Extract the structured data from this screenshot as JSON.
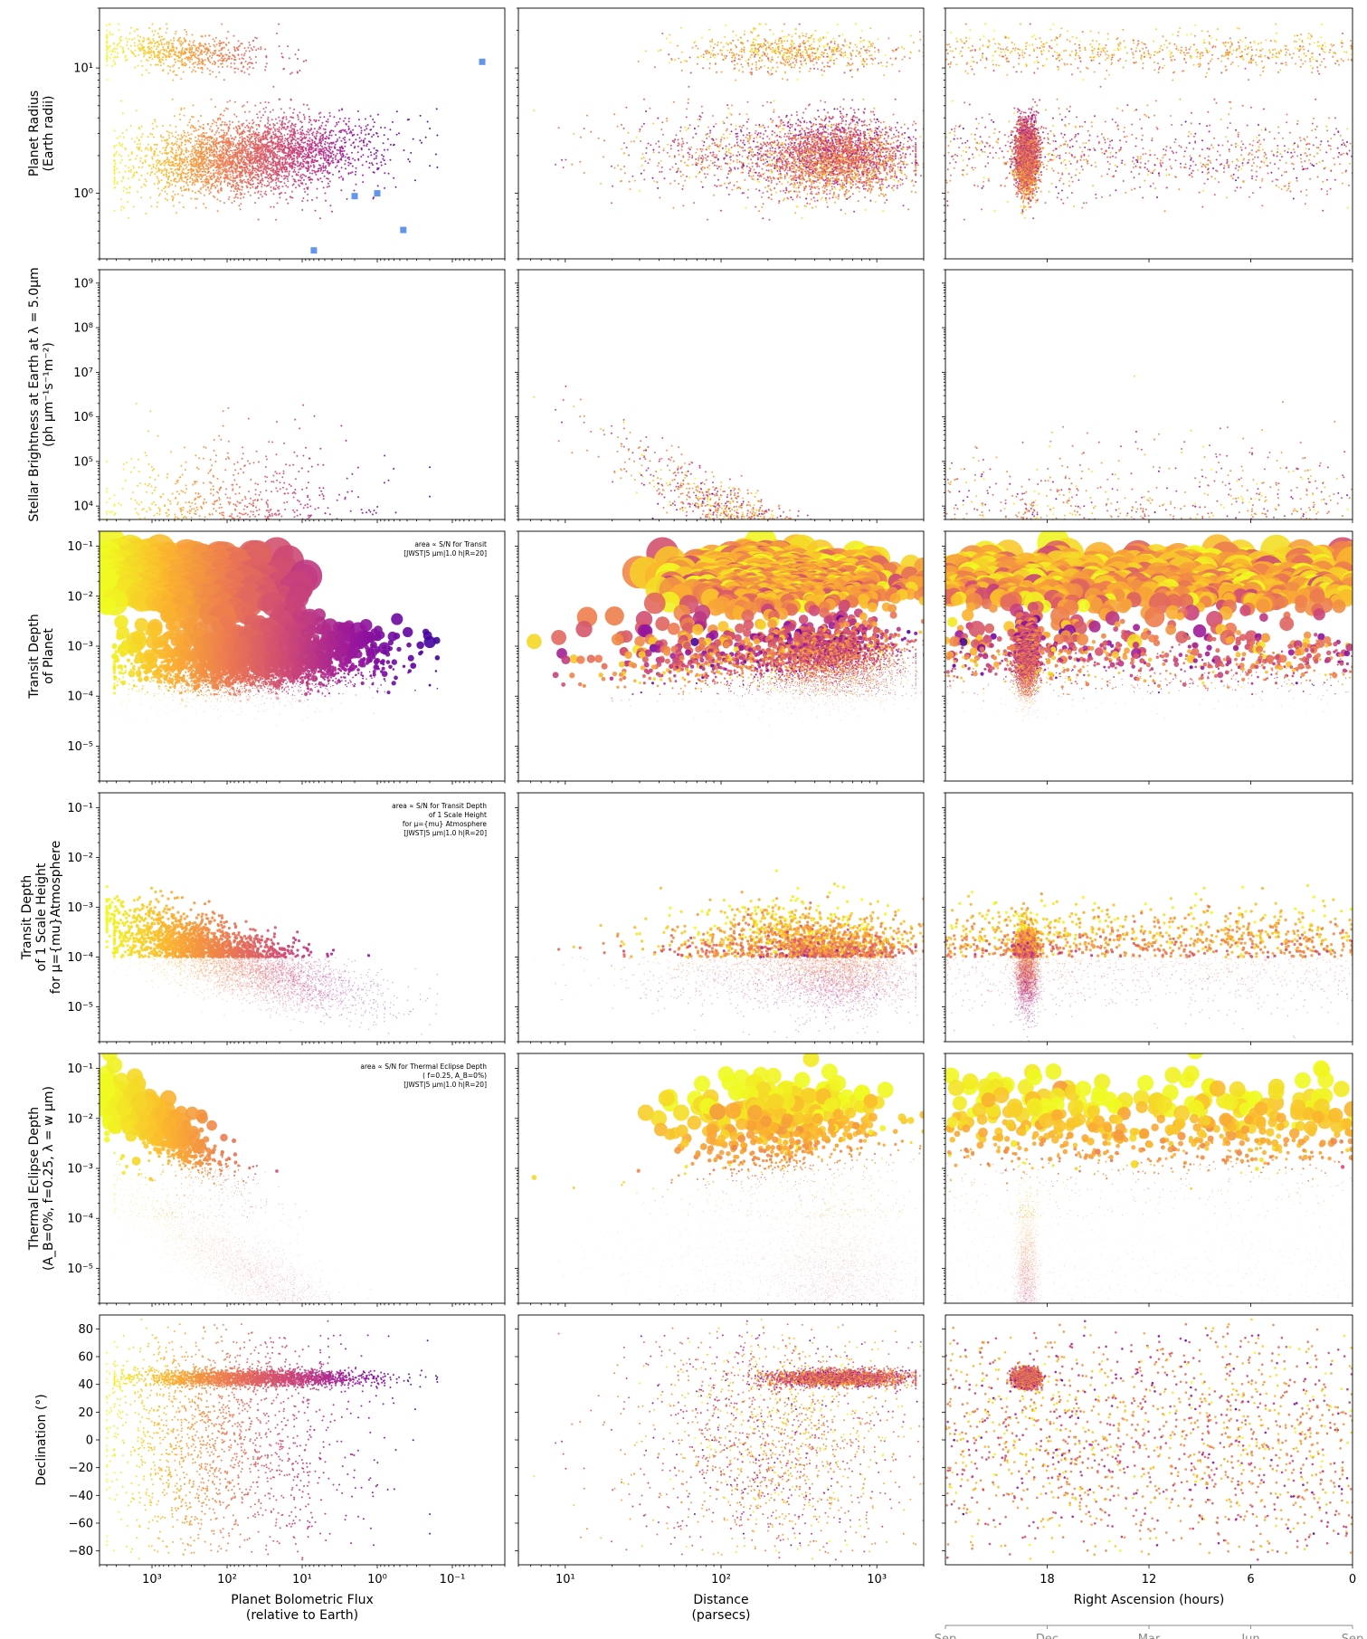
{
  "chart_data": {
    "type": "scatter",
    "grid": false,
    "colormap": [
      "#0d0887",
      "#5b02a3",
      "#9a179b",
      "#cb4678",
      "#eb7852",
      "#fbb32f",
      "#f0f921"
    ],
    "columns": [
      {
        "key": "flux",
        "xlabel": [
          "Planet Bolometric Flux",
          "(relative to Earth)"
        ],
        "xscale": "log",
        "xlim": [
          5000,
          0.02
        ],
        "xticks": [
          {
            "v": 1000,
            "label": "10³"
          },
          {
            "v": 100,
            "label": "10²"
          },
          {
            "v": 10,
            "label": "10¹"
          },
          {
            "v": 1,
            "label": "10⁰"
          },
          {
            "v": 0.1,
            "label": "10⁻¹"
          }
        ]
      },
      {
        "key": "distance",
        "xlabel": [
          "Distance",
          "(parsecs)"
        ],
        "xscale": "log",
        "xlim": [
          5,
          2000
        ],
        "xticks": [
          {
            "v": 10,
            "label": "10¹"
          },
          {
            "v": 100,
            "label": "10²"
          },
          {
            "v": 1000,
            "label": "10³"
          }
        ]
      },
      {
        "key": "ra",
        "xlabel": [
          "Right Ascension (hours)"
        ],
        "xscale": "linear",
        "xlim": [
          24,
          0
        ],
        "xticks": [
          {
            "v": 18,
            "label": "18"
          },
          {
            "v": 12,
            "label": "12"
          },
          {
            "v": 6,
            "label": "6"
          },
          {
            "v": 0,
            "label": "0"
          }
        ],
        "month_axis": [
          "Sep",
          "Dec",
          "Mar",
          "Jun",
          "Sep"
        ]
      }
    ],
    "rows": [
      {
        "key": "radius",
        "ylabel": [
          "Planet Radius",
          "(Earth radii)"
        ],
        "yscale": "log",
        "ylim": [
          0.3,
          30
        ],
        "yticks": [
          {
            "v": 1,
            "label": "10⁰"
          },
          {
            "v": 10,
            "label": "10¹"
          }
        ],
        "note": [],
        "highlight_points": [
          {
            "flux": 0.04,
            "radius": 11.2
          },
          {
            "flux": 2.0,
            "radius": 0.95
          },
          {
            "flux": 1.0,
            "radius": 1.0
          },
          {
            "flux": 0.45,
            "radius": 0.51
          },
          {
            "flux": 7.0,
            "radius": 0.35
          }
        ],
        "highlight_color": "#6495ed"
      },
      {
        "key": "brightness",
        "ylabel": [
          "Stellar Brightness at Earth at λ = 5.0μm",
          "(ph μm⁻¹s⁻¹m⁻²)"
        ],
        "yscale": "log",
        "ylim": [
          5000,
          2000000000
        ],
        "yticks": [
          {
            "v": 10000,
            "label": "10⁴"
          },
          {
            "v": 100000,
            "label": "10⁵"
          },
          {
            "v": 1000000,
            "label": "10⁶"
          },
          {
            "v": 10000000,
            "label": "10⁷"
          },
          {
            "v": 100000000,
            "label": "10⁸"
          },
          {
            "v": 1000000000,
            "label": "10⁹"
          }
        ],
        "note": []
      },
      {
        "key": "transit_depth",
        "ylabel": [
          "Transit Depth",
          "of Planet"
        ],
        "yscale": "log",
        "ylim": [
          2e-06,
          0.2
        ],
        "yticks": [
          {
            "v": 1e-05,
            "label": "10⁻⁵"
          },
          {
            "v": 0.0001,
            "label": "10⁻⁴"
          },
          {
            "v": 0.001,
            "label": "10⁻³"
          },
          {
            "v": 0.01,
            "label": "10⁻²"
          },
          {
            "v": 0.1,
            "label": "10⁻¹"
          }
        ],
        "note": [
          "area ∝ S/N for Transit",
          "[JWST|5 μm|1.0 h|R=20]"
        ]
      },
      {
        "key": "scale_height",
        "ylabel": [
          "Transit Depth",
          "of 1 Scale Height",
          "for μ={mu}Atmosphere"
        ],
        "yscale": "log",
        "ylim": [
          2e-06,
          0.2
        ],
        "yticks": [
          {
            "v": 1e-05,
            "label": "10⁻⁵"
          },
          {
            "v": 0.0001,
            "label": "10⁻⁴"
          },
          {
            "v": 0.001,
            "label": "10⁻³"
          },
          {
            "v": 0.01,
            "label": "10⁻²"
          },
          {
            "v": 0.1,
            "label": "10⁻¹"
          }
        ],
        "note": [
          "area ∝ S/N for Transit Depth",
          "of 1 Scale Height",
          "for μ={mu} Atmosphere",
          "[JWST|5 μm|1.0 h|R=20]"
        ]
      },
      {
        "key": "eclipse",
        "ylabel": [
          "Thermal Eclipse Depth",
          "(A_B=0%, f=0.25, λ = w μm)"
        ],
        "yscale": "log",
        "ylim": [
          2e-06,
          0.2
        ],
        "yticks": [
          {
            "v": 1e-05,
            "label": "10⁻⁵"
          },
          {
            "v": 0.0001,
            "label": "10⁻⁴"
          },
          {
            "v": 0.001,
            "label": "10⁻³"
          },
          {
            "v": 0.01,
            "label": "10⁻²"
          },
          {
            "v": 0.1,
            "label": "10⁻¹"
          }
        ],
        "note": [
          "area ∝ S/N for Thermal Eclipse Depth",
          "( f=0.25, A_B=0%)",
          "[JWST|5 μm|1.0 h|R=20]"
        ]
      },
      {
        "key": "declination",
        "ylabel": [
          "Declination (°)"
        ],
        "yscale": "linear",
        "ylim": [
          -90,
          90
        ],
        "yticks": [
          {
            "v": -80,
            "label": "−80"
          },
          {
            "v": -60,
            "label": "−60"
          },
          {
            "v": -40,
            "label": "−40"
          },
          {
            "v": -20,
            "label": "−20"
          },
          {
            "v": 0,
            "label": "0"
          },
          {
            "v": 20,
            "label": "20"
          },
          {
            "v": 40,
            "label": "40"
          },
          {
            "v": 60,
            "label": "60"
          },
          {
            "v": 80,
            "label": "80"
          }
        ],
        "note": []
      }
    ]
  }
}
